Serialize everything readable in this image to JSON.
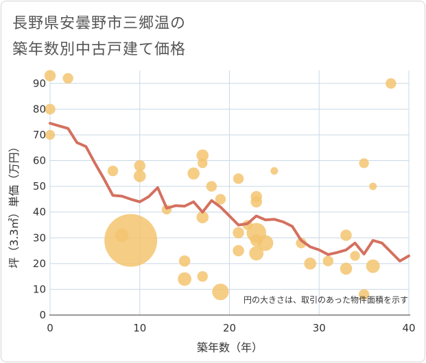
{
  "chart_data": {
    "type": "scatter",
    "title_line1": "長野県安曇野市三郷温の",
    "title_line2": "築年数別中古戸建て価格",
    "xlabel": "築年数（年）",
    "ylabel": "坪（3.3㎡）単価（万円）",
    "xlim": [
      0,
      40
    ],
    "ylim": [
      0,
      95
    ],
    "xticks": [
      0,
      10,
      20,
      30,
      40
    ],
    "yticks": [
      0,
      10,
      20,
      30,
      40,
      50,
      60,
      70,
      80,
      90
    ],
    "note": "円の大きさは、取引のあった物件面積を示す",
    "colors": {
      "bubble": "#f3c470",
      "line": "#d4705f",
      "grid": "#c9d8e6"
    },
    "bubbles": [
      {
        "x": 0,
        "y": 93,
        "s": 1.5
      },
      {
        "x": 0,
        "y": 80,
        "s": 1.4
      },
      {
        "x": 0,
        "y": 70,
        "s": 1.3
      },
      {
        "x": 2,
        "y": 92,
        "s": 1.4
      },
      {
        "x": 7,
        "y": 56,
        "s": 1.4
      },
      {
        "x": 8,
        "y": 31,
        "s": 1.8
      },
      {
        "x": 9,
        "y": 29,
        "s": 7.0
      },
      {
        "x": 10,
        "y": 58,
        "s": 1.5
      },
      {
        "x": 10,
        "y": 54,
        "s": 1.6
      },
      {
        "x": 13,
        "y": 41,
        "s": 1.3
      },
      {
        "x": 15,
        "y": 21,
        "s": 1.5
      },
      {
        "x": 15,
        "y": 14,
        "s": 1.8
      },
      {
        "x": 16,
        "y": 55,
        "s": 1.6
      },
      {
        "x": 17,
        "y": 62,
        "s": 1.6
      },
      {
        "x": 17,
        "y": 59,
        "s": 1.3
      },
      {
        "x": 17,
        "y": 38,
        "s": 1.6
      },
      {
        "x": 17,
        "y": 15,
        "s": 1.4
      },
      {
        "x": 18,
        "y": 50,
        "s": 1.4
      },
      {
        "x": 19,
        "y": 45,
        "s": 1.4
      },
      {
        "x": 19,
        "y": 9,
        "s": 2.2
      },
      {
        "x": 21,
        "y": 53,
        "s": 1.4
      },
      {
        "x": 21,
        "y": 32,
        "s": 1.5
      },
      {
        "x": 21,
        "y": 25,
        "s": 1.5
      },
      {
        "x": 22,
        "y": 35,
        "s": 1.3
      },
      {
        "x": 23,
        "y": 46,
        "s": 1.5
      },
      {
        "x": 23,
        "y": 44,
        "s": 1.5
      },
      {
        "x": 23,
        "y": 32,
        "s": 2.6
      },
      {
        "x": 23,
        "y": 29,
        "s": 1.6
      },
      {
        "x": 23,
        "y": 24,
        "s": 1.9
      },
      {
        "x": 24,
        "y": 28,
        "s": 2.1
      },
      {
        "x": 25,
        "y": 56,
        "s": 1.0
      },
      {
        "x": 28,
        "y": 28,
        "s": 1.4
      },
      {
        "x": 29,
        "y": 20,
        "s": 1.6
      },
      {
        "x": 31,
        "y": 21,
        "s": 1.4
      },
      {
        "x": 33,
        "y": 31,
        "s": 1.5
      },
      {
        "x": 33,
        "y": 18,
        "s": 1.6
      },
      {
        "x": 34,
        "y": 23,
        "s": 1.3
      },
      {
        "x": 35,
        "y": 59,
        "s": 1.3
      },
      {
        "x": 35,
        "y": 8,
        "s": 1.4
      },
      {
        "x": 36,
        "y": 50,
        "s": 1.0
      },
      {
        "x": 36,
        "y": 19,
        "s": 1.8
      },
      {
        "x": 38,
        "y": 90,
        "s": 1.4
      }
    ],
    "trend": [
      [
        0,
        74.5
      ],
      [
        1,
        73.5
      ],
      [
        2,
        72.5
      ],
      [
        3,
        67
      ],
      [
        4,
        65.5
      ],
      [
        5,
        59
      ],
      [
        6,
        53
      ],
      [
        7,
        46.5
      ],
      [
        8,
        46.2
      ],
      [
        9,
        45
      ],
      [
        10,
        44
      ],
      [
        11,
        46
      ],
      [
        12,
        49.5
      ],
      [
        13,
        41.5
      ],
      [
        14,
        42.5
      ],
      [
        15,
        42.3
      ],
      [
        16,
        44
      ],
      [
        17,
        40
      ],
      [
        18,
        44.5
      ],
      [
        19,
        42
      ],
      [
        20,
        38.5
      ],
      [
        21,
        35
      ],
      [
        22,
        35.5
      ],
      [
        23,
        38.5
      ],
      [
        24,
        37
      ],
      [
        25,
        37.2
      ],
      [
        26,
        36.2
      ],
      [
        27,
        34.5
      ],
      [
        28,
        29
      ],
      [
        29,
        26.5
      ],
      [
        30,
        25.3
      ],
      [
        31,
        23.5
      ],
      [
        32,
        24.3
      ],
      [
        33,
        25.3
      ],
      [
        34,
        28
      ],
      [
        35,
        23.7
      ],
      [
        36,
        29
      ],
      [
        37,
        28
      ],
      [
        38,
        24.5
      ],
      [
        39,
        21
      ],
      [
        40,
        23
      ]
    ]
  }
}
